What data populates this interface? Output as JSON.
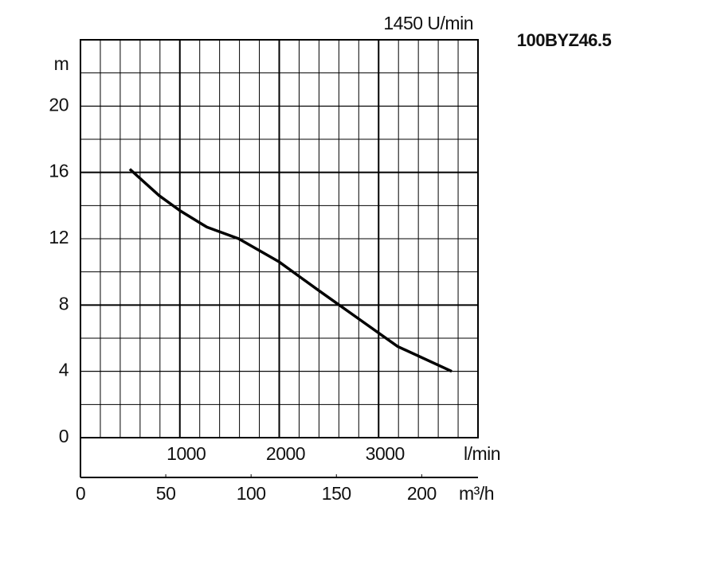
{
  "chart_data": {
    "type": "line",
    "title": "100BYZ46.5",
    "subtitle": "1450 U/min",
    "y_label": "m",
    "x_label": "l/min",
    "x2_label": "m³/h",
    "xlim": [
      0,
      4000
    ],
    "xticks": [
      1000,
      2000,
      3000
    ],
    "x2lim": [
      0,
      233
    ],
    "x2ticks": [
      0,
      50,
      100,
      150,
      200
    ],
    "ylim": [
      0,
      24
    ],
    "yticks": [
      0,
      4,
      8,
      12,
      16,
      20
    ],
    "grid": true,
    "x": [
      496,
      792,
      1000,
      1272,
      1592,
      2000,
      2392,
      2792,
      3192,
      3736
    ],
    "series": [
      {
        "color": "#000000",
        "values": [
          16.2,
          14.6,
          13.7,
          12.7,
          12.0,
          10.6,
          8.9,
          7.2,
          5.5,
          4.0
        ]
      }
    ]
  }
}
